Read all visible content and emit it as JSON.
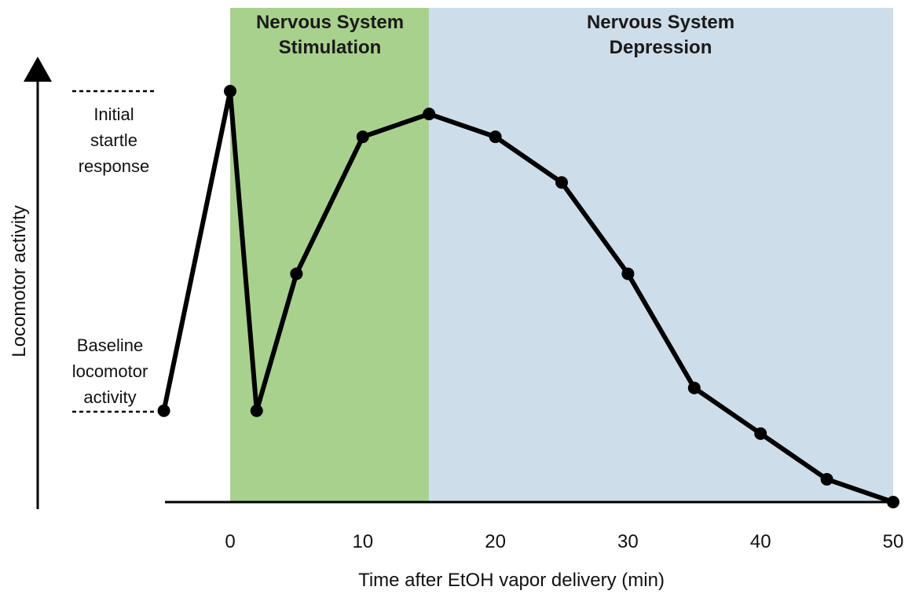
{
  "chart_data": {
    "type": "line",
    "xlabel": "Time after EtOH vapor delivery (min)",
    "ylabel": "Locomotor activity",
    "xlim": [
      -5,
      50
    ],
    "ylim": [
      0,
      1.0
    ],
    "x_ticks": [
      0,
      10,
      20,
      30,
      40,
      50
    ],
    "regions": [
      {
        "label_line1": "Nervous System",
        "label_line2": "Stimulation",
        "x_start": 0,
        "x_end": 15,
        "color": "#a9d18e"
      },
      {
        "label_line1": "Nervous System",
        "label_line2": "Depression",
        "x_start": 15,
        "x_end": 50,
        "color": "#cddde9"
      }
    ],
    "annotations": {
      "startle": {
        "lines": [
          "Initial",
          "startle",
          "response"
        ],
        "y": 0.9
      },
      "baseline": {
        "lines": [
          "Baseline",
          "locomotor",
          "activity"
        ],
        "y": 0.2
      }
    },
    "series": [
      {
        "x": [
          -5,
          0,
          2,
          5,
          10,
          15,
          20,
          25,
          30,
          35,
          40,
          45,
          50
        ],
        "y": [
          0.2,
          0.9,
          0.2,
          0.5,
          0.8,
          0.85,
          0.8,
          0.7,
          0.5,
          0.25,
          0.15,
          0.05,
          0.0
        ],
        "color": "#000000"
      }
    ],
    "grid": false
  }
}
